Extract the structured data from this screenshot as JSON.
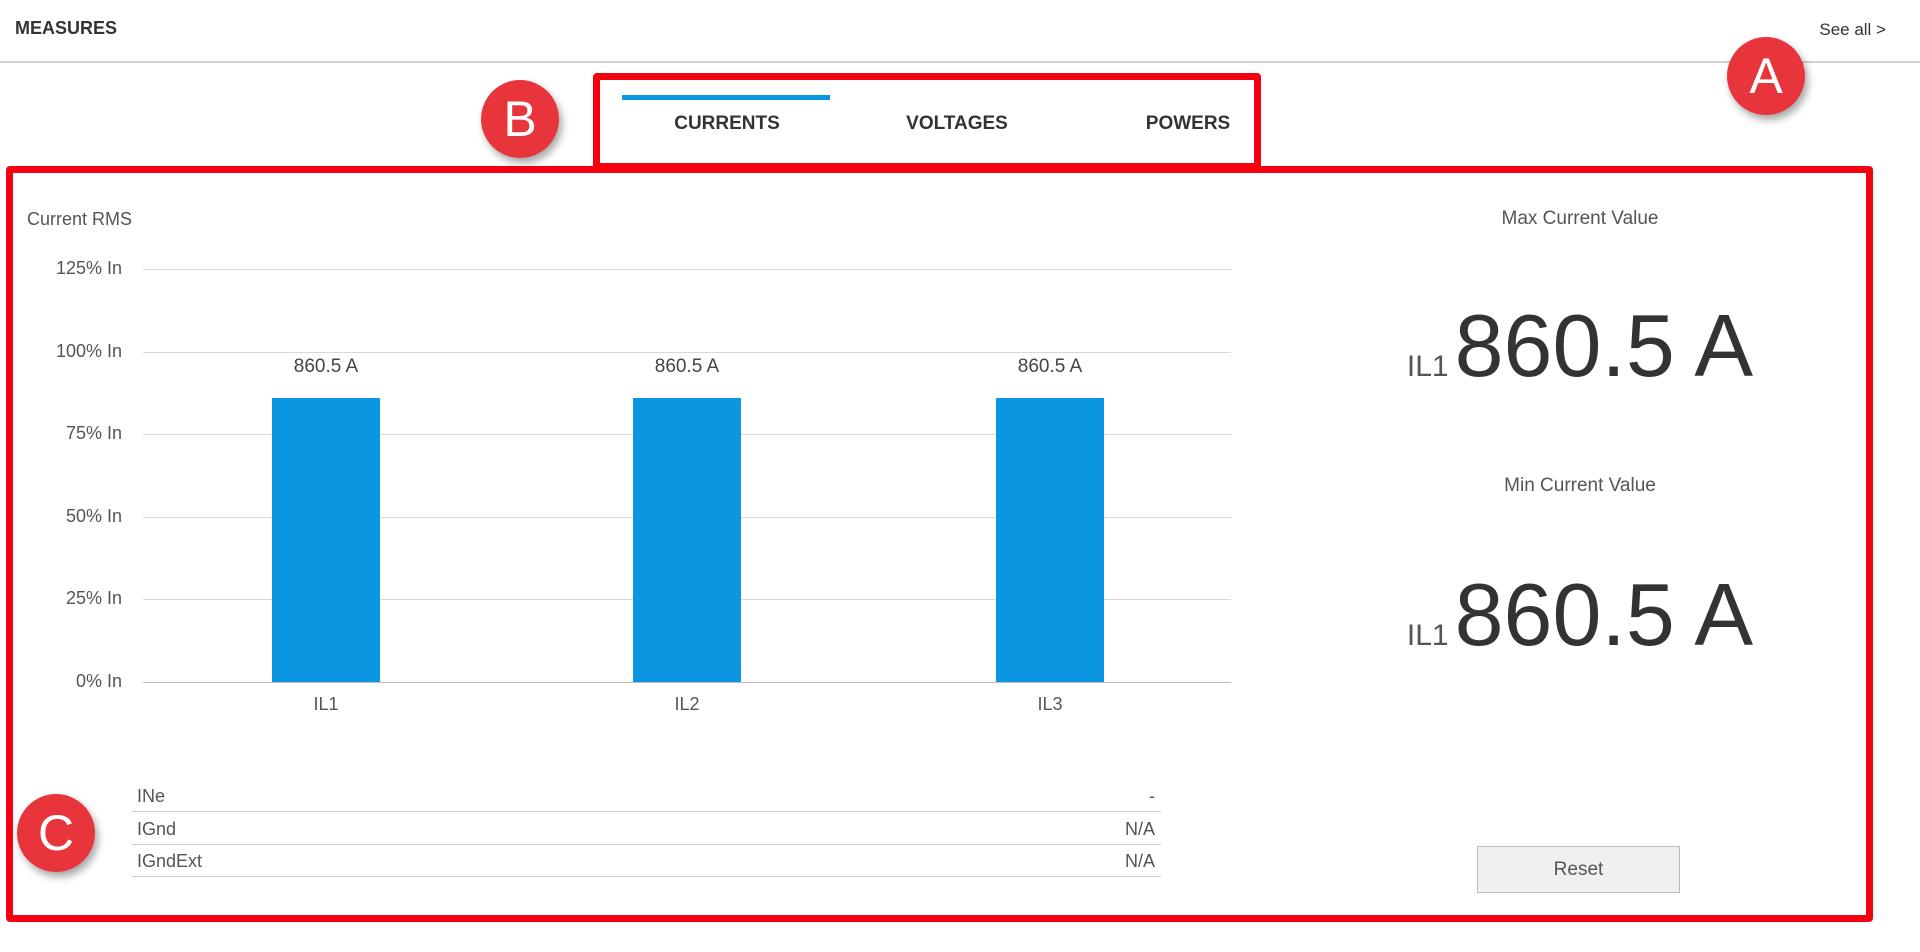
{
  "header": {
    "title": "MEASURES",
    "see_all": "See all >"
  },
  "tabs": [
    {
      "label": "CURRENTS",
      "active": true
    },
    {
      "label": "VOLTAGES",
      "active": false
    },
    {
      "label": "POWERS",
      "active": false
    }
  ],
  "annotations": {
    "a": "A",
    "b": "B",
    "c": "C",
    "color": "#f5000f"
  },
  "accent_color": "#0a96e0",
  "chart_data": {
    "type": "bar",
    "title": "Current RMS",
    "categories": [
      "IL1",
      "IL2",
      "IL3"
    ],
    "values": [
      86,
      86,
      86
    ],
    "value_labels": [
      "860.5 A",
      "860.5 A",
      "860.5 A"
    ],
    "yticks": [
      "0% In",
      "25% In",
      "50% In",
      "75% In",
      "100% In",
      "125% In"
    ],
    "ylim": [
      0,
      125
    ],
    "grid": true,
    "color": "#0a96e0"
  },
  "side": {
    "max_label": "Max Current Value",
    "max_phase": "IL1",
    "max_value": "860.5 A",
    "min_label": "Min Current Value",
    "min_phase": "IL1",
    "min_value": "860.5 A",
    "reset_label": "Reset"
  },
  "table": [
    {
      "name": "INe",
      "value": "-"
    },
    {
      "name": "IGnd",
      "value": "N/A"
    },
    {
      "name": "IGndExt",
      "value": "N/A"
    }
  ]
}
